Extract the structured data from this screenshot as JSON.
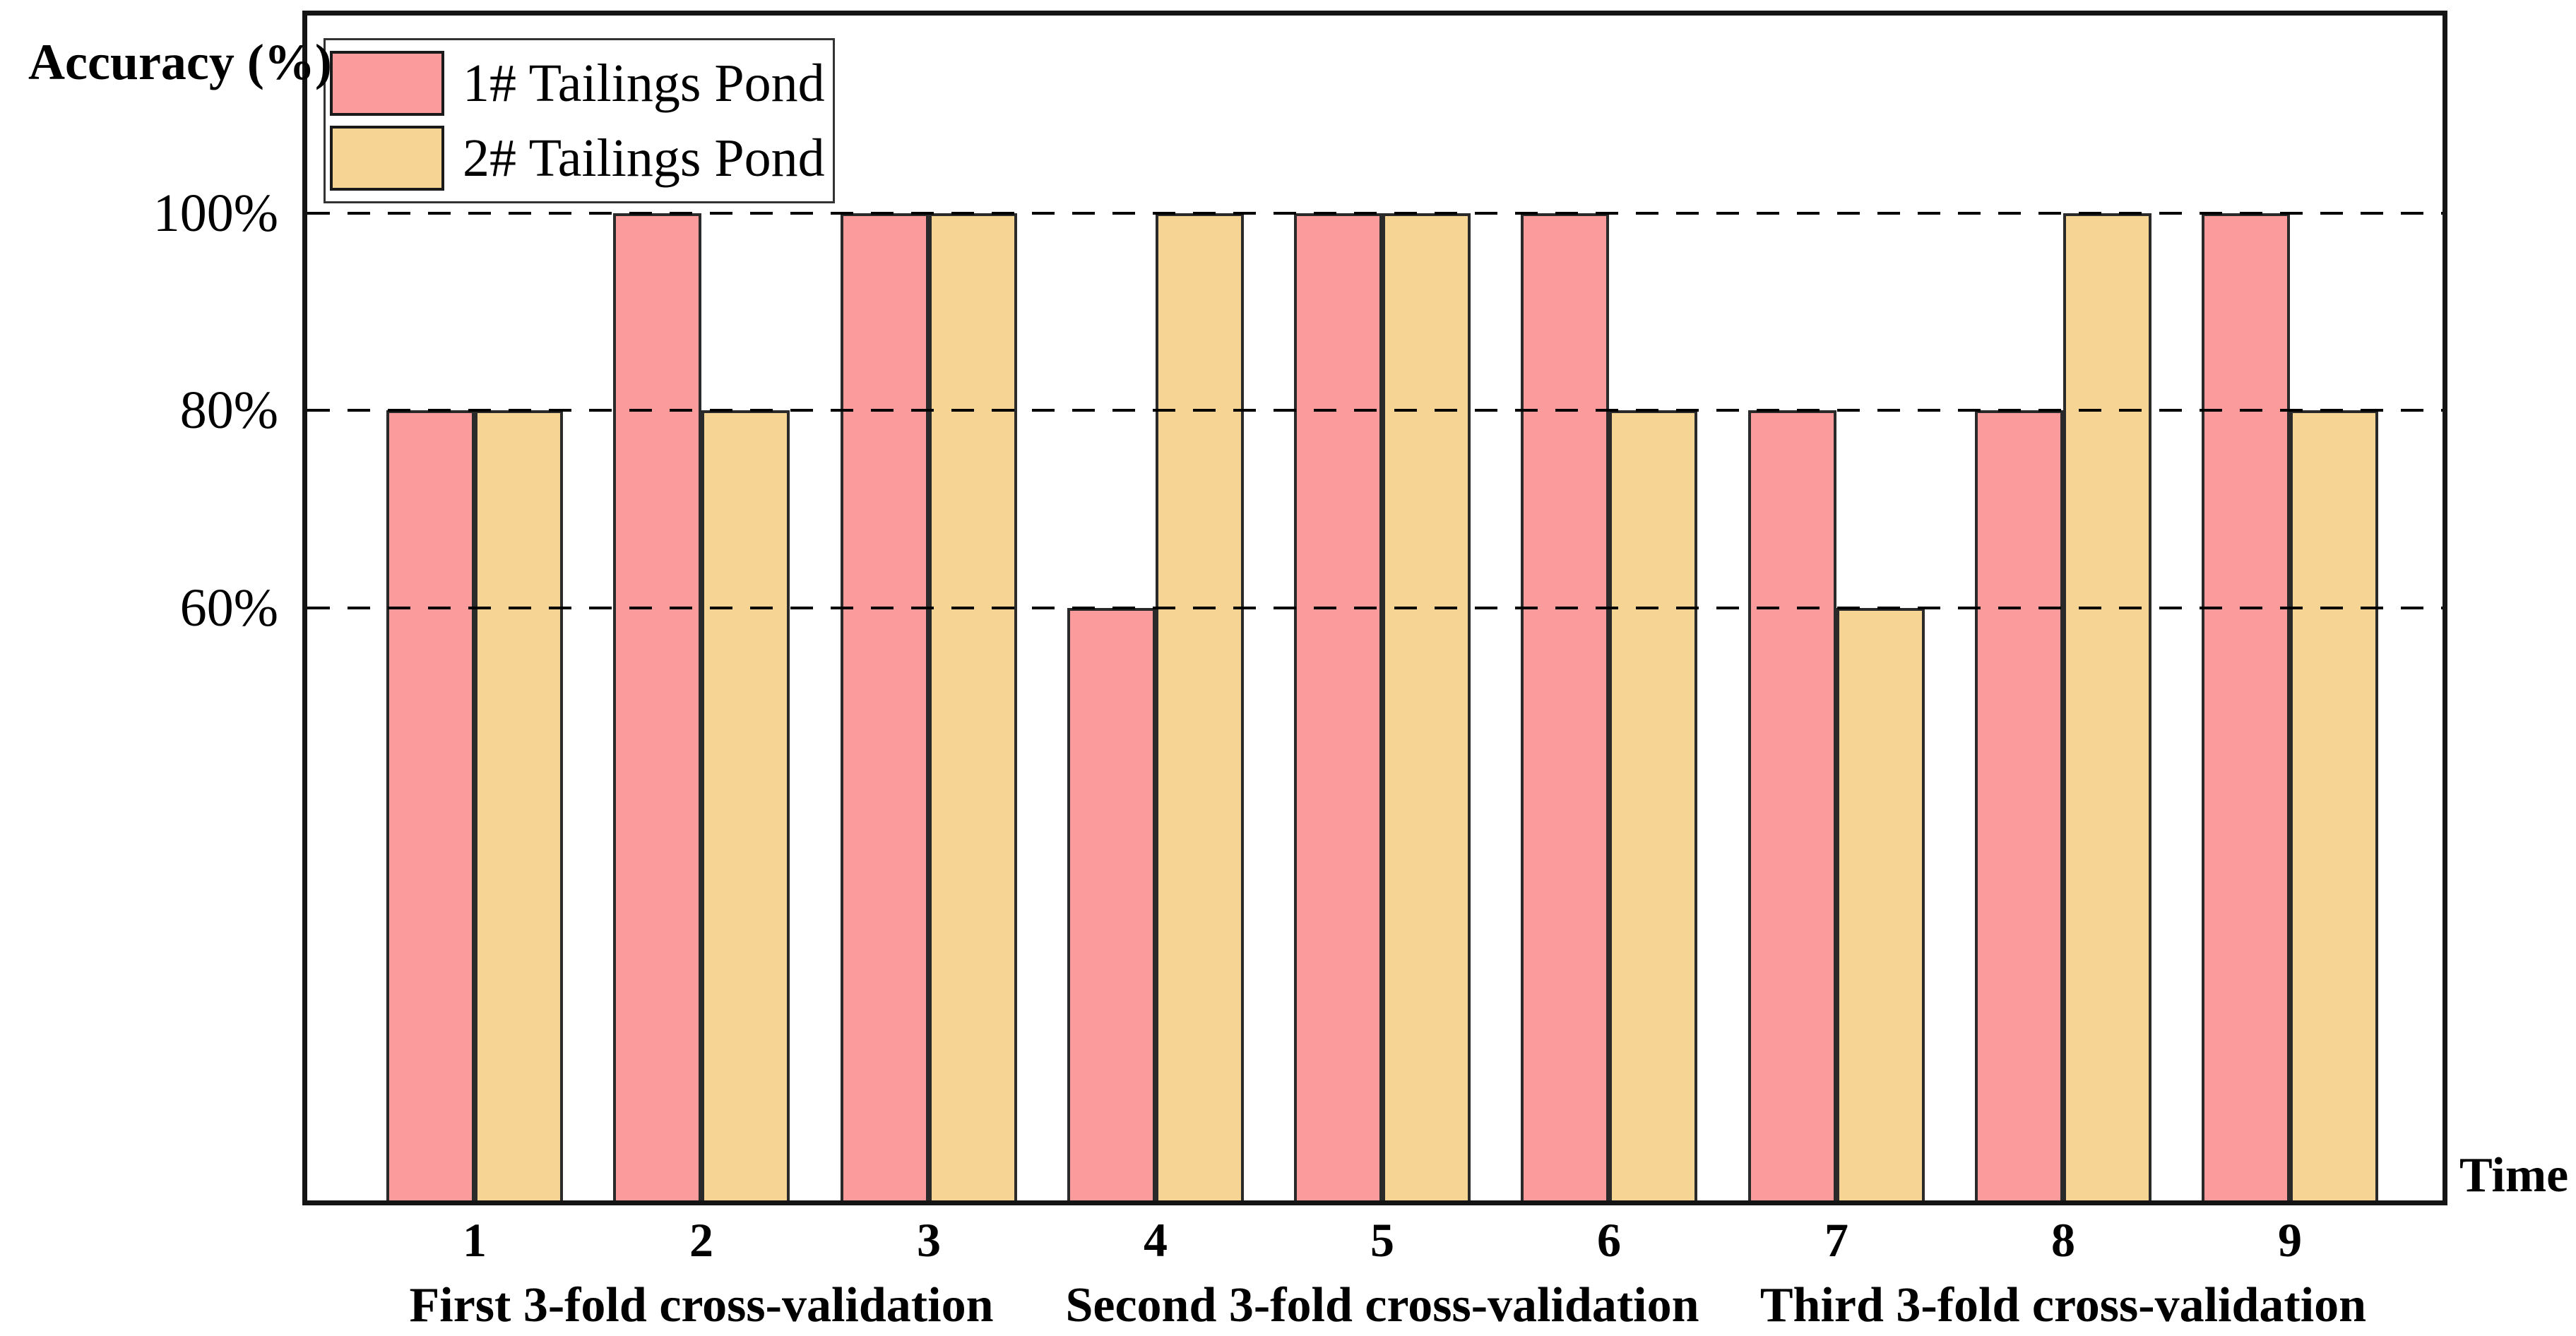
{
  "figure": {
    "y_axis_title": "Accuracy (%)",
    "x_axis_title": "Time",
    "background": "#ffffff",
    "frame_color": "#141414"
  },
  "legend": {
    "items": [
      {
        "label": "1# Tailings Pond",
        "color": "#fc9b9b",
        "border": "#1a1a1a"
      },
      {
        "label": "2# Tailings Pond",
        "color": "#f6d494",
        "border": "#1a1a1a"
      }
    ]
  },
  "chart_data": {
    "type": "bar",
    "title": "",
    "xlabel": "Time",
    "ylabel": "Accuracy (%)",
    "categories": [
      "1",
      "2",
      "3",
      "4",
      "5",
      "6",
      "7",
      "8",
      "9"
    ],
    "series": [
      {
        "name": "1# Tailings Pond",
        "color": "#fc9b9b",
        "values": [
          80,
          100,
          100,
          60,
          100,
          100,
          80,
          80,
          100
        ]
      },
      {
        "name": "2# Tailings Pond",
        "color": "#f6d494",
        "values": [
          80,
          80,
          100,
          100,
          100,
          80,
          60,
          100,
          80
        ]
      }
    ],
    "ylim": [
      0,
      120
    ],
    "yticks": [
      {
        "value": 100,
        "label": "100%"
      },
      {
        "value": 80,
        "label": "80%"
      },
      {
        "value": 60,
        "label": "60%"
      }
    ],
    "gridline_values": [
      100,
      80,
      60
    ],
    "gridline_style": "dashed",
    "grid_on_top_of_bars": true,
    "legend_position": "inside-top-left",
    "bar_outline": "#2a2a2a",
    "group_labels": [
      {
        "label": "First 3-fold cross-validation",
        "center_category": "2"
      },
      {
        "label": "Second 3-fold cross-validation",
        "center_category": "5"
      },
      {
        "label": "Third 3-fold cross-validation",
        "center_category": "8"
      }
    ]
  }
}
